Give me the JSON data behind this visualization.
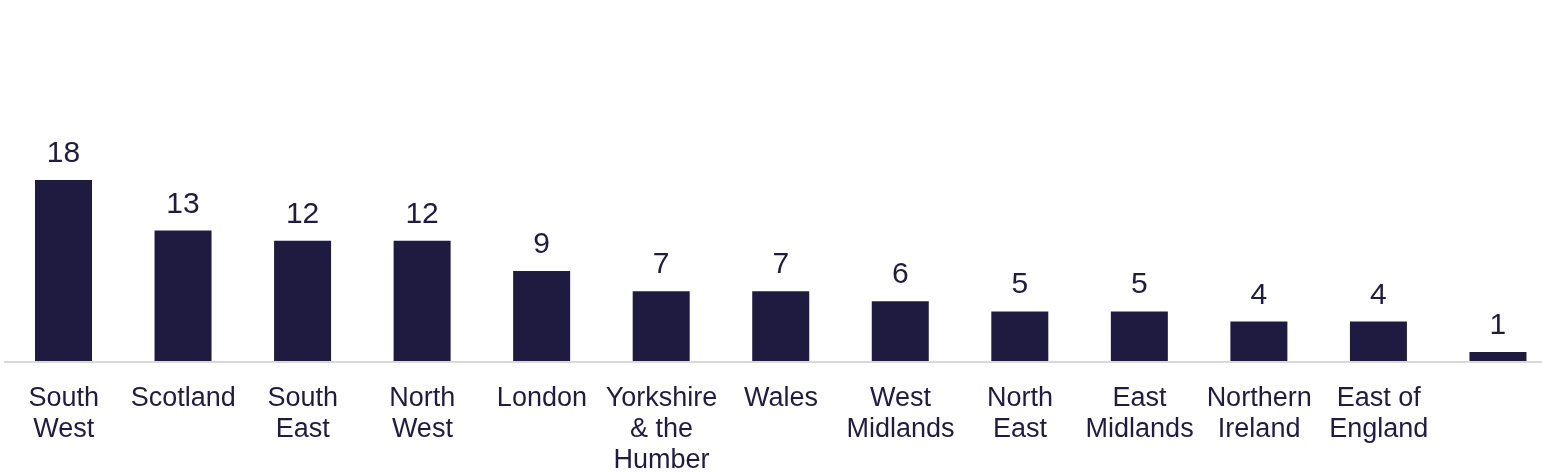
{
  "chart_data": {
    "type": "bar",
    "categories": [
      "South West",
      "Scotland",
      "South East",
      "North West",
      "London",
      "Yorkshire & the Humber",
      "Wales",
      "West Midlands",
      "North East",
      "East Midlands",
      "Northern Ireland",
      "East of England",
      null
    ],
    "values": [
      18,
      13,
      12,
      12,
      9,
      7,
      7,
      6,
      5,
      5,
      4,
      4,
      1
    ],
    "color": "#1f1a40",
    "data_labels": true
  }
}
